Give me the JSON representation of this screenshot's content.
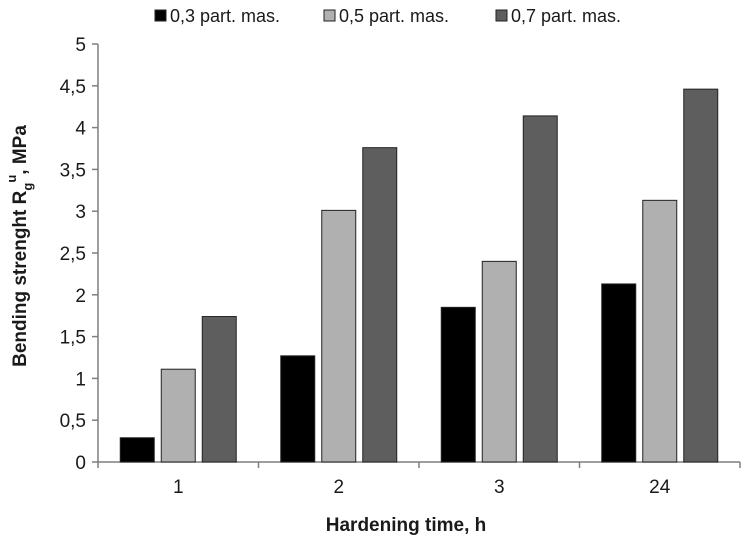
{
  "chart_data": {
    "type": "bar",
    "categories": [
      "1",
      "2",
      "3",
      "24"
    ],
    "series": [
      {
        "name": "0,3 part. mas.",
        "values": [
          0.29,
          1.27,
          1.85,
          2.13
        ],
        "color": "#000000"
      },
      {
        "name": "0,5 part. mas.",
        "values": [
          1.11,
          3.01,
          2.4,
          3.13
        ],
        "color": "#b0b0b0"
      },
      {
        "name": "0,7 part. mas.",
        "values": [
          1.74,
          3.76,
          4.14,
          4.46
        ],
        "color": "#5e5e5e"
      }
    ],
    "xlabel": "Hardening time, h",
    "ylabel": {
      "main": "Bending strenght R",
      "subscript": "g",
      "superscript": "u",
      "suffix": ", MPa"
    },
    "ylim": [
      0,
      5
    ],
    "yticks": [
      "0",
      "0,5",
      "1",
      "1,5",
      "2",
      "2,5",
      "3",
      "3,5",
      "4",
      "4,5",
      "5"
    ],
    "legend_position": "top",
    "grid": false
  }
}
